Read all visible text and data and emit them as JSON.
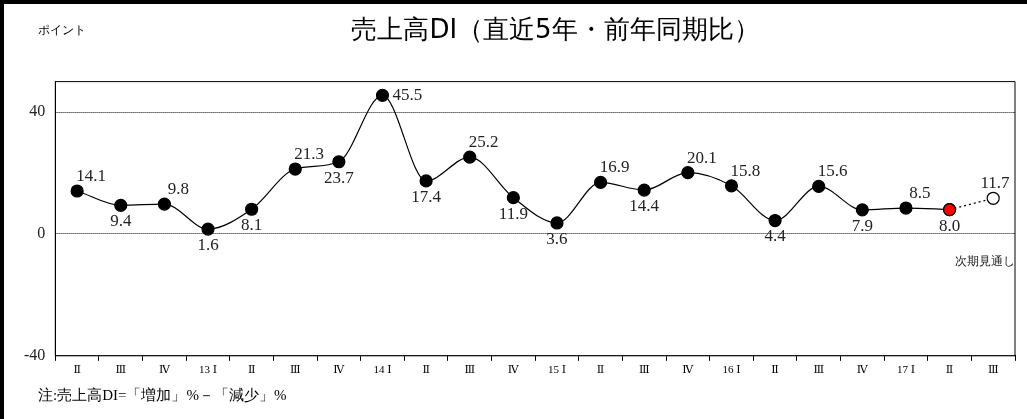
{
  "chart_data": {
    "type": "line",
    "title": "売上高DI（直近5年・前年同期比）",
    "ylabel": "ポイント",
    "categories": [
      "Ⅱ",
      "Ⅲ",
      "Ⅳ",
      "13 Ⅰ",
      "Ⅱ",
      "Ⅲ",
      "Ⅳ",
      "14 Ⅰ",
      "Ⅱ",
      "Ⅲ",
      "Ⅳ",
      "15 Ⅰ",
      "Ⅱ",
      "Ⅲ",
      "Ⅳ",
      "16 Ⅰ",
      "Ⅱ",
      "Ⅲ",
      "Ⅳ",
      "17 Ⅰ",
      "Ⅱ",
      "Ⅲ"
    ],
    "series": [
      {
        "color": "#000000",
        "values": [
          14.1,
          9.4,
          9.8,
          1.6,
          8.1,
          21.3,
          23.7,
          45.5,
          17.4,
          25.2,
          11.9,
          3.6,
          16.9,
          14.4,
          20.1,
          15.8,
          4.4,
          15.6,
          7.9,
          8.5,
          8.0,
          null
        ],
        "value_labels": [
          "14.1",
          "9.4",
          "9.8",
          "1.6",
          "8.1",
          "21.3",
          "23.7",
          "45.5",
          "17.4",
          "25.2",
          "11.9",
          "3.6",
          "16.9",
          "14.4",
          "20.1",
          "15.8",
          "4.4",
          "15.6",
          "7.9",
          "8.5",
          "8.0",
          null
        ],
        "colors": [
          "#000000",
          "#000000",
          "#000000",
          "#000000",
          "#000000",
          "#000000",
          "#000000",
          "#000000",
          "#000000",
          "#000000",
          "#000000",
          "#000000",
          "#000000",
          "#000000",
          "#000000",
          "#000000",
          "#000000",
          "#000000",
          "#000000",
          "#000000",
          "#ff0000",
          null
        ]
      },
      {
        "color": "#000000",
        "line_style": "dotted",
        "values": [
          null,
          null,
          null,
          null,
          null,
          null,
          null,
          null,
          null,
          null,
          null,
          null,
          null,
          null,
          null,
          null,
          null,
          null,
          null,
          null,
          8.0,
          11.7
        ],
        "value_labels": [
          null,
          null,
          null,
          null,
          null,
          null,
          null,
          null,
          null,
          null,
          null,
          null,
          null,
          null,
          null,
          null,
          null,
          null,
          null,
          null,
          null,
          "11.7"
        ],
        "colors": [
          null,
          null,
          null,
          null,
          null,
          null,
          null,
          null,
          null,
          null,
          null,
          null,
          null,
          null,
          null,
          null,
          null,
          null,
          null,
          null,
          "#ff0000",
          "#ffffff"
        ]
      }
    ],
    "ylim": [
      -40,
      50
    ],
    "yticks": [
      -40,
      0,
      40
    ],
    "grid": "y",
    "marker": "circle",
    "legend": false,
    "annotations": [
      "次期見通し",
      "注:売上高DI=「増加」%－「減少」%"
    ]
  }
}
